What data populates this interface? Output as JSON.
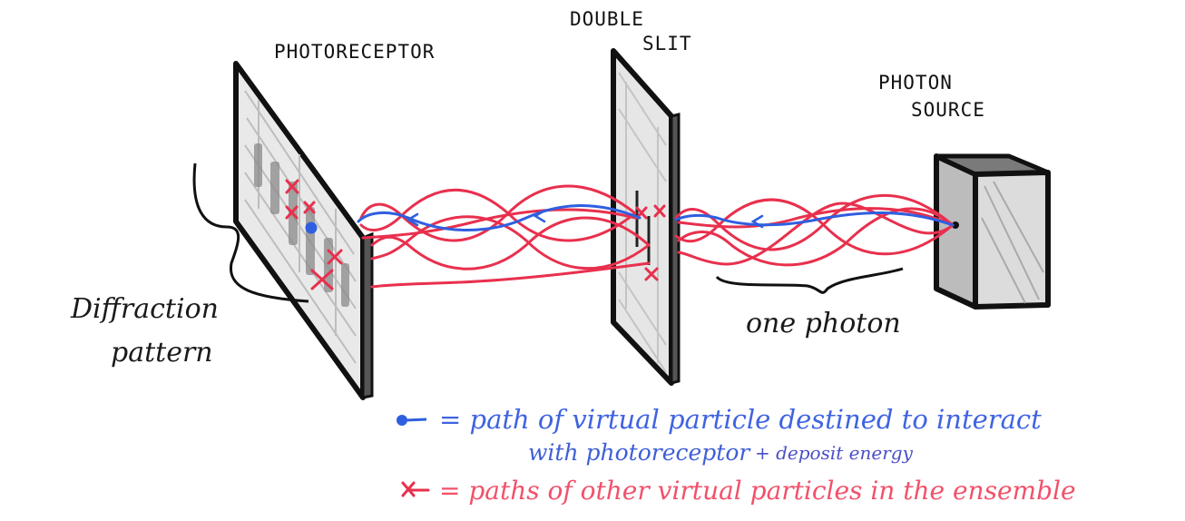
{
  "labels": {
    "photoreceptor": "PHOTORECEPTOR",
    "double_slit_line1": "DOUBLE",
    "double_slit_line2": "SLIT",
    "photon_source_line1": "PHOTON",
    "photon_source_line2": "SOURCE",
    "diffraction_line1": "Diffraction",
    "diffraction_line2": "pattern",
    "one_photon": "one photon"
  },
  "legend": {
    "blue_line1": "= path of virtual particle destined to interact",
    "blue_line2": "with photoreceptor",
    "blue_line2_small": "+ deposit energy",
    "red_line": "= paths of other virtual particles in the ensemble"
  },
  "colors": {
    "ink": "#111111",
    "blue_path": "#2f5fe0",
    "red_path": "#e8304d",
    "panel_fill": "#e6e6e6"
  }
}
